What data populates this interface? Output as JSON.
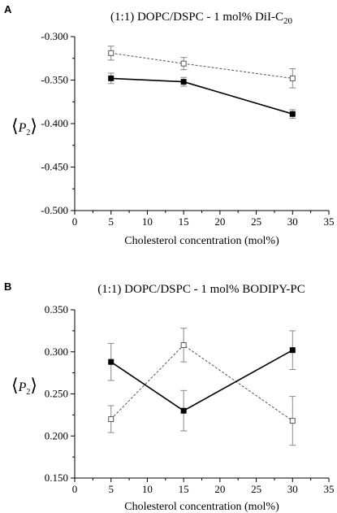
{
  "chart_data": [
    {
      "type": "line",
      "panel_label": "A",
      "title": "(1:1) DOPC/DSPC - 1 mol% DiI-C",
      "title_subscript": "20",
      "xlabel": "Cholesterol concentration (mol%)",
      "ylabel": "P",
      "ylabel_subscript": "2",
      "xlim": [
        0,
        35
      ],
      "ylim": [
        -0.5,
        -0.3
      ],
      "x_ticks": [
        "0",
        "5",
        "10",
        "15",
        "20",
        "25",
        "30",
        "35"
      ],
      "y_ticks": [
        "-0.300",
        "-0.350",
        "-0.400",
        "-0.450",
        "-0.500"
      ],
      "series": [
        {
          "style": "dashed",
          "marker": "open-square",
          "color": "#555555",
          "x": [
            5,
            15,
            30
          ],
          "y": [
            -0.319,
            -0.331,
            -0.348
          ],
          "err": [
            0.008,
            0.007,
            0.011
          ]
        },
        {
          "style": "solid",
          "marker": "filled-square",
          "color": "#000000",
          "x": [
            5,
            15,
            30
          ],
          "y": [
            -0.348,
            -0.352,
            -0.389
          ],
          "err": [
            0.006,
            0.005,
            0.005
          ]
        }
      ]
    },
    {
      "type": "line",
      "panel_label": "B",
      "title": "(1:1) DOPC/DSPC - 1 mol% BODIPY-PC",
      "xlabel": "Cholesterol concentration (mol%)",
      "ylabel": "P",
      "ylabel_subscript": "2",
      "xlim": [
        0,
        35
      ],
      "ylim": [
        0.15,
        0.35
      ],
      "x_ticks": [
        "0",
        "5",
        "10",
        "15",
        "20",
        "25",
        "30",
        "35"
      ],
      "y_ticks": [
        "0.350",
        "0.300",
        "0.250",
        "0.200",
        "0.150"
      ],
      "series": [
        {
          "style": "dashed",
          "marker": "open-square",
          "color": "#555555",
          "x": [
            5,
            15,
            30
          ],
          "y": [
            0.22,
            0.308,
            0.218
          ],
          "err": [
            0.016,
            0.02,
            0.029
          ]
        },
        {
          "style": "solid",
          "marker": "filled-square",
          "color": "#000000",
          "x": [
            5,
            15,
            30
          ],
          "y": [
            0.288,
            0.23,
            0.302
          ],
          "err": [
            0.022,
            0.024,
            0.023
          ]
        }
      ]
    }
  ]
}
